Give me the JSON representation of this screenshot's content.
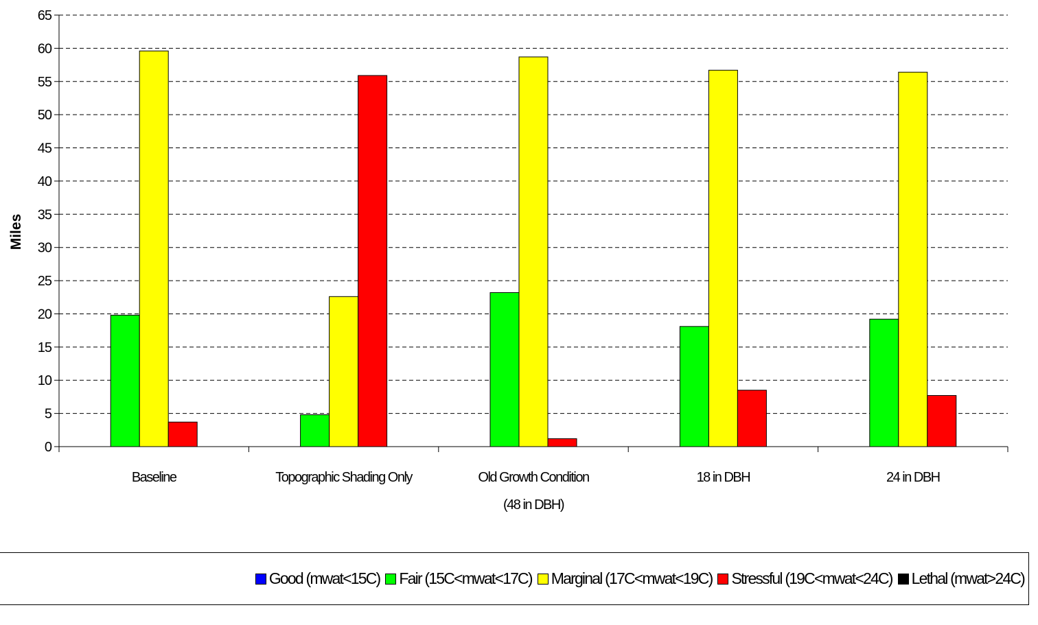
{
  "chart_data": {
    "type": "bar",
    "ylabel": "Miles",
    "ylim": [
      0,
      65
    ],
    "yticks": [
      0,
      5,
      10,
      15,
      20,
      25,
      30,
      35,
      40,
      45,
      50,
      55,
      60,
      65
    ],
    "grid": true,
    "legend_position": "bottom",
    "categories": [
      [
        "Baseline"
      ],
      [
        "Topographic Shading Only"
      ],
      [
        "Old Growth Condition",
        "(48 in DBH)"
      ],
      [
        "18 in DBH"
      ],
      [
        "24 in DBH"
      ]
    ],
    "series": [
      {
        "name": "Good (mwat<15C)",
        "color": "#0000ff",
        "values": [
          0,
          0,
          0,
          0,
          0
        ]
      },
      {
        "name": "Fair (15C<mwat<17C)",
        "color": "#00ff00",
        "values": [
          19.8,
          4.8,
          23.2,
          18.1,
          19.2
        ]
      },
      {
        "name": "Marginal (17C<mwat<19C)",
        "color": "#ffff00",
        "values": [
          59.6,
          22.6,
          58.7,
          56.7,
          56.4
        ]
      },
      {
        "name": "Stressful (19C<mwat<24C)",
        "color": "#ff0000",
        "values": [
          3.7,
          55.9,
          1.2,
          8.5,
          7.7
        ]
      },
      {
        "name": "Lethal (mwat>24C)",
        "color": "#000000",
        "values": [
          0,
          0,
          0,
          0,
          0
        ]
      }
    ]
  }
}
